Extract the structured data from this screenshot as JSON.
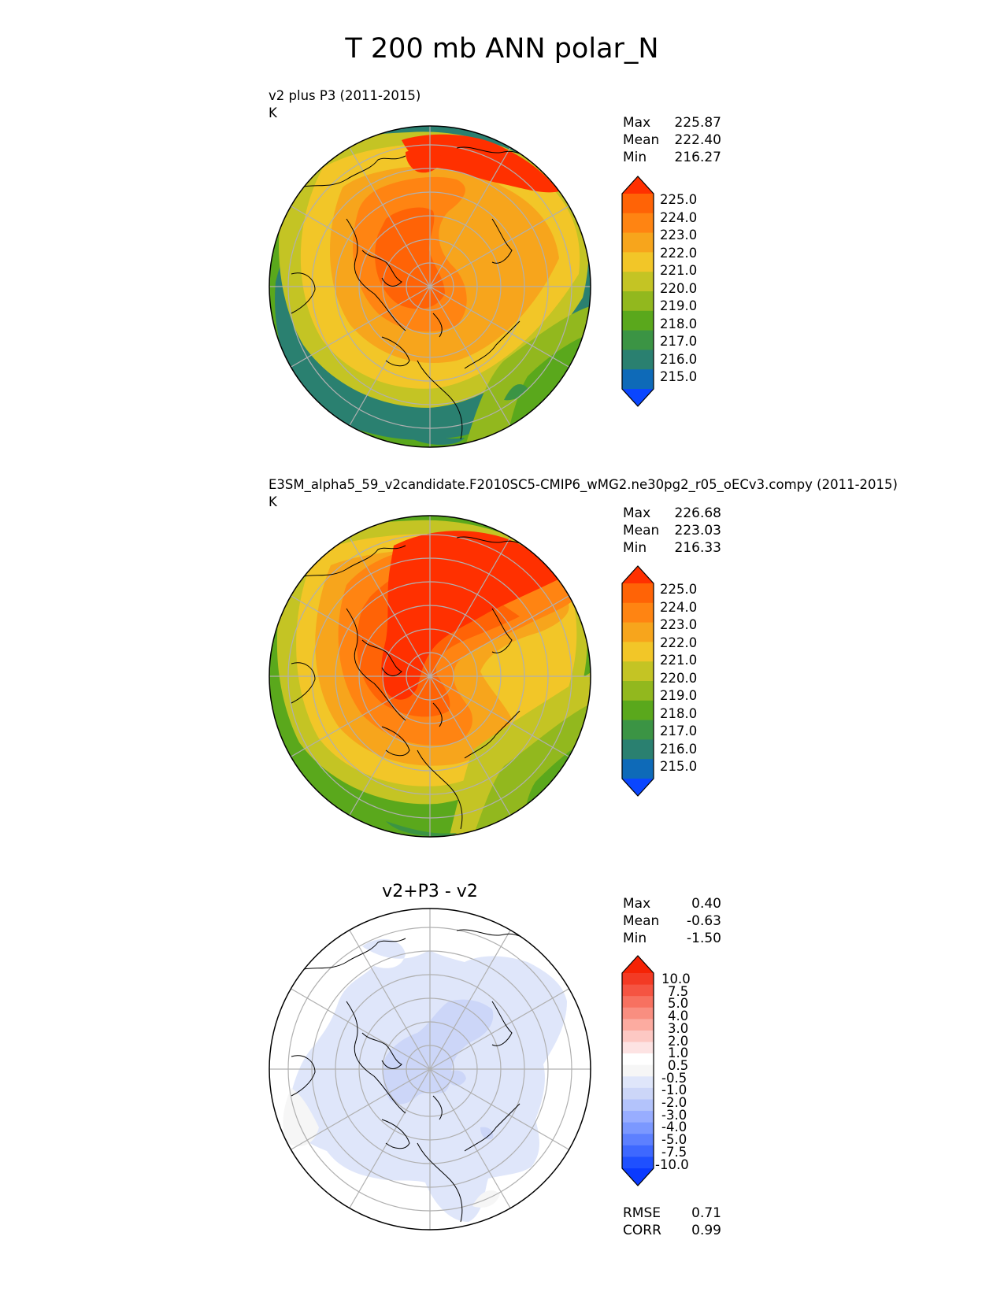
{
  "figure": {
    "title": "T 200 mb ANN polar_N",
    "colors": {
      "abs_levels": [
        "#0a46ff",
        "#0e6ab8",
        "#2a8070",
        "#3b9444",
        "#5aa81c",
        "#92b81e",
        "#c4c424",
        "#f2c628",
        "#f7a51c",
        "#ff8412",
        "#ff6306",
        "#ff3000"
      ],
      "diff_levels": [
        "#0a3aff",
        "#1f50ff",
        "#3e68ff",
        "#5d80ff",
        "#7b98ff",
        "#98adff",
        "#b3c3fb",
        "#ccd6f8",
        "#dfe6fa",
        "#f6f6f6",
        "#ffffff",
        "#fde3e3",
        "#fdc8c3",
        "#fcaba0",
        "#f98e80",
        "#f77160",
        "#f55442",
        "#f33a24",
        "#f52305"
      ],
      "coastline": "#000000",
      "grid": "#b0b0b0"
    }
  },
  "panels": [
    {
      "id": "test",
      "title_line1": "v2 plus P3 (2011-2015)",
      "title_line2": "K",
      "stats": [
        {
          "label": "Max",
          "value": "225.87"
        },
        {
          "label": "Mean",
          "value": "222.40"
        },
        {
          "label": "Min",
          "value": "216.27"
        }
      ],
      "colorbar_ticks": [
        "225.0",
        "224.0",
        "223.0",
        "222.0",
        "221.0",
        "220.0",
        "219.0",
        "218.0",
        "217.0",
        "216.0",
        "215.0"
      ]
    },
    {
      "id": "reference",
      "title_line1": "E3SM_alpha5_59_v2candidate.F2010SC5-CMIP6_wMG2.ne30pg2_r05_oECv3.compy (2011-2015)",
      "title_line2": "K",
      "stats": [
        {
          "label": "Max",
          "value": "226.68"
        },
        {
          "label": "Mean",
          "value": "223.03"
        },
        {
          "label": "Min",
          "value": "216.33"
        }
      ],
      "colorbar_ticks": [
        "225.0",
        "224.0",
        "223.0",
        "222.0",
        "221.0",
        "220.0",
        "219.0",
        "218.0",
        "217.0",
        "216.0",
        "215.0"
      ]
    },
    {
      "id": "difference",
      "title": "v2+P3 - v2",
      "stats": [
        {
          "label": "Max",
          "value": "0.40"
        },
        {
          "label": "Mean",
          "value": "-0.63"
        },
        {
          "label": "Min",
          "value": "-1.50"
        }
      ],
      "colorbar_ticks": [
        "10.0",
        "7.5",
        "5.0",
        "4.0",
        "3.0",
        "2.0",
        "1.0",
        "0.5",
        "-0.5",
        "-1.0",
        "-2.0",
        "-3.0",
        "-4.0",
        "-5.0",
        "-7.5",
        "-10.0"
      ],
      "metrics": [
        {
          "label": "RMSE",
          "value": "0.71"
        },
        {
          "label": "CORR",
          "value": "0.99"
        }
      ]
    }
  ],
  "chart_data": [
    {
      "type": "heatmap",
      "projection": "north polar stereographic",
      "title": "v2 plus P3 (2011-2015)",
      "units": "K",
      "levels": [
        215.0,
        216.0,
        217.0,
        218.0,
        219.0,
        220.0,
        221.0,
        222.0,
        223.0,
        224.0,
        225.0
      ],
      "colorbar_extend": "both",
      "max": 225.87,
      "mean": 222.4,
      "min": 216.27
    },
    {
      "type": "heatmap",
      "projection": "north polar stereographic",
      "title": "E3SM_alpha5_59_v2candidate.F2010SC5-CMIP6_wMG2.ne30pg2_r05_oECv3.compy (2011-2015)",
      "units": "K",
      "levels": [
        215.0,
        216.0,
        217.0,
        218.0,
        219.0,
        220.0,
        221.0,
        222.0,
        223.0,
        224.0,
        225.0
      ],
      "colorbar_extend": "both",
      "max": 226.68,
      "mean": 223.03,
      "min": 216.33
    },
    {
      "type": "heatmap",
      "projection": "north polar stereographic",
      "title": "v2+P3 - v2",
      "levels": [
        -10.0,
        -7.5,
        -5.0,
        -4.0,
        -3.0,
        -2.0,
        -1.0,
        -0.5,
        0.5,
        1.0,
        2.0,
        3.0,
        4.0,
        5.0,
        7.5,
        10.0
      ],
      "colorbar_extend": "both",
      "max": 0.4,
      "mean": -0.63,
      "min": -1.5,
      "rmse": 0.71,
      "corr": 0.99
    }
  ]
}
